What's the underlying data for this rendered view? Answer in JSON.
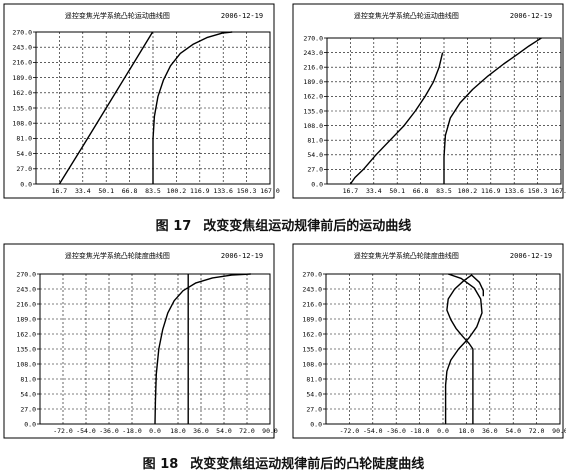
{
  "captions": [
    {
      "number": "图 17",
      "text": "改变变焦组运动规律前后的运动曲线"
    },
    {
      "number": "图 18",
      "text": "改变变焦组运动规律前后的凸轮陡度曲线"
    }
  ],
  "chart_data": [
    {
      "type": "line",
      "title": "遥控变焦光学系统凸轮运动曲线图",
      "date": "2006-12-19",
      "grid": true,
      "xlim": [
        0,
        167
      ],
      "ylim": [
        0,
        270
      ],
      "x_ticks": [
        "16.7",
        "33.4",
        "50.1",
        "66.8",
        "83.5",
        "100.2",
        "116.9",
        "133.6",
        "150.3",
        "167.0"
      ],
      "y_ticks": [
        "0.0",
        "27.0",
        "54.0",
        "81.0",
        "108.0",
        "135.0",
        "162.0",
        "189.0",
        "216.0",
        "243.0",
        "270.0"
      ],
      "series": [
        {
          "x": [
            16.7,
            33.4,
            50.1,
            66.8,
            83.2
          ],
          "y": [
            0,
            67,
            135,
            203,
            270
          ]
        },
        {
          "x": [
            83.5,
            83.5,
            84.5,
            87,
            91,
            96,
            103,
            112,
            122,
            133,
            140
          ],
          "y": [
            0,
            80,
            120,
            155,
            185,
            210,
            232,
            248,
            260,
            268,
            270
          ]
        }
      ]
    },
    {
      "type": "line",
      "title": "遥控变焦光学系统凸轮运动曲线图",
      "date": "2006-12-19",
      "grid": true,
      "xlim": [
        0,
        167
      ],
      "ylim": [
        0,
        270
      ],
      "x_ticks": [
        "16.7",
        "33.4",
        "50.1",
        "66.8",
        "83.5",
        "100.2",
        "116.9",
        "133.6",
        "150.3",
        "167.0"
      ],
      "y_ticks": [
        "0.0",
        "27.0",
        "54.0",
        "81.0",
        "108.0",
        "135.0",
        "162.0",
        "189.0",
        "216.0",
        "243.0",
        "270.0"
      ],
      "series": [
        {
          "x": [
            16.7,
            20,
            26,
            35,
            45,
            55,
            63,
            70,
            76,
            80,
            82.5
          ],
          "y": [
            0,
            12,
            27,
            54,
            81,
            108,
            135,
            162,
            189,
            216,
            243
          ]
        },
        {
          "x": [
            83.5,
            83.5,
            84.5,
            88,
            95,
            104,
            115,
            126,
            136,
            144,
            150,
            153
          ],
          "y": [
            0,
            50,
            90,
            122,
            150,
            175,
            200,
            222,
            240,
            255,
            265,
            270
          ]
        }
      ]
    },
    {
      "type": "line",
      "title": "遥控变焦光学系统凸轮陡度曲线图",
      "date": "2006-12-19",
      "grid": true,
      "xlim": [
        -90,
        90
      ],
      "ylim": [
        0,
        270
      ],
      "x_ticks": [
        "-72.0",
        "-54.0",
        "-36.0",
        "-18.0",
        "0.0",
        "18.0",
        "36.0",
        "54.0",
        "72.0",
        "90.0"
      ],
      "y_ticks": [
        "0.0",
        "27.0",
        "54.0",
        "81.0",
        "108.0",
        "135.0",
        "162.0",
        "189.0",
        "216.0",
        "243.0",
        "270.0"
      ],
      "series": [
        {
          "x": [
            0,
            0.3,
            1,
            3,
            6,
            10,
            15,
            22,
            32,
            45,
            60,
            75
          ],
          "y": [
            0,
            40,
            90,
            135,
            170,
            200,
            222,
            240,
            254,
            263,
            268,
            270
          ]
        },
        {
          "x": [
            26,
            26
          ],
          "y": [
            0,
            270
          ]
        }
      ]
    },
    {
      "type": "line",
      "title": "遥控变焦光学系统凸轮陡度曲线图",
      "date": "2006-12-19",
      "grid": true,
      "xlim": [
        -90,
        90
      ],
      "ylim": [
        0,
        270
      ],
      "x_ticks": [
        "-72.0",
        "-54.0",
        "-36.0",
        "-18.0",
        "0.0",
        "18.0",
        "36.0",
        "54.0",
        "72.0",
        "90.0"
      ],
      "y_ticks": [
        "0.0",
        "27.0",
        "54.0",
        "81.0",
        "108.0",
        "135.0",
        "162.0",
        "189.0",
        "216.0",
        "243.0",
        "270.0"
      ],
      "series": [
        {
          "x": [
            2,
            2,
            3,
            6,
            12,
            20,
            26,
            30,
            29,
            24,
            14,
            4
          ],
          "y": [
            0,
            70,
            95,
            115,
            135,
            155,
            175,
            200,
            225,
            245,
            262,
            270
          ]
        },
        {
          "x": [
            23,
            23,
            20,
            15,
            10,
            6,
            3,
            4,
            9,
            16,
            22,
            28,
            31,
            31
          ],
          "y": [
            0,
            135,
            145,
            158,
            172,
            188,
            205,
            225,
            243,
            258,
            268,
            255,
            240,
            230
          ]
        }
      ]
    }
  ]
}
